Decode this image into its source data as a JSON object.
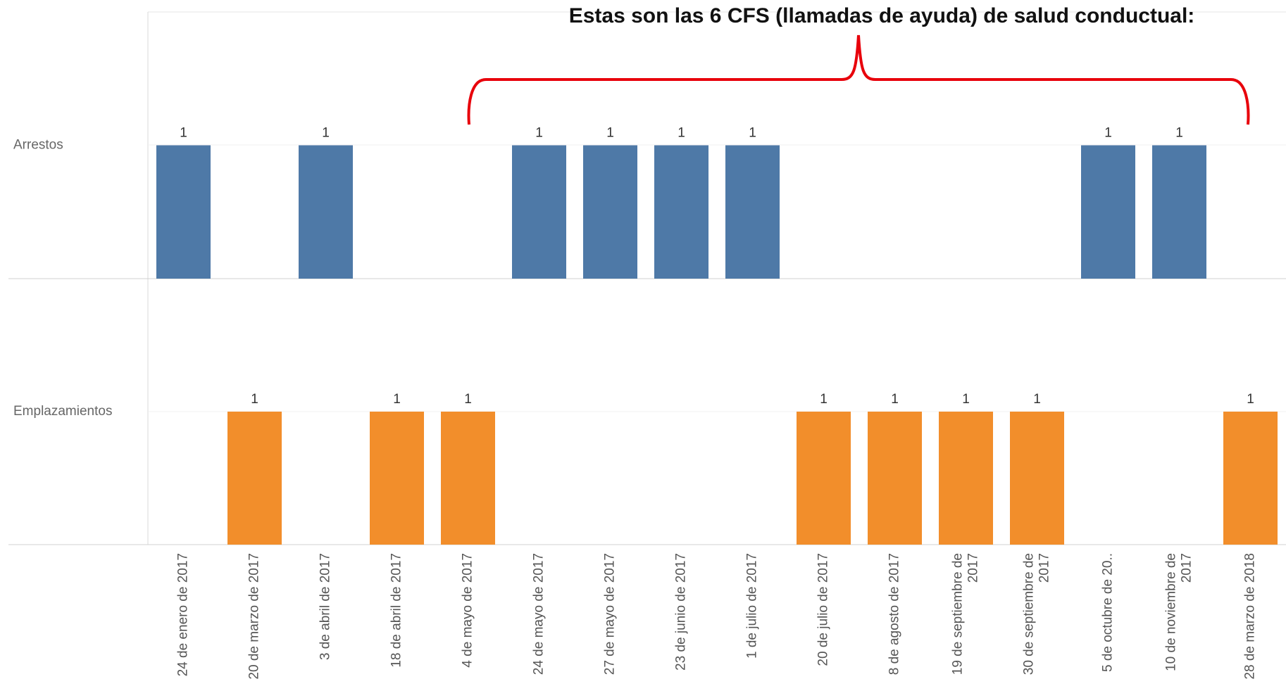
{
  "chart_data": {
    "type": "bar",
    "annotation": "Estas son las 6 CFS (llamadas de ayuda) de salud conductual:",
    "categories": [
      "24 de enero de 2017",
      "20 de marzo de 2017",
      "3 de abril de 2017",
      "18 de abril de 2017",
      "4 de mayo de 2017",
      "24 de mayo de 2017",
      "27 de mayo de 2017",
      "23 de junio de 2017",
      "1 de julio de 2017",
      "20 de julio de 2017",
      "8 de agosto de 2017",
      "19 de septiembre de 2017",
      "30 de septiembre de 2017",
      "5 de octubre de 20..",
      "10 de noviembre de 2017",
      "28 de marzo de 2018"
    ],
    "series": [
      {
        "name": "Arrestos",
        "color": "#4e79a7",
        "values": [
          1,
          null,
          1,
          null,
          null,
          1,
          1,
          1,
          1,
          null,
          null,
          null,
          null,
          1,
          1,
          null
        ]
      },
      {
        "name": "Emplazamientos",
        "color": "#f28e2b",
        "values": [
          null,
          1,
          null,
          1,
          1,
          null,
          null,
          null,
          null,
          1,
          1,
          1,
          1,
          null,
          null,
          1
        ]
      }
    ],
    "ylim": [
      0,
      2
    ]
  }
}
